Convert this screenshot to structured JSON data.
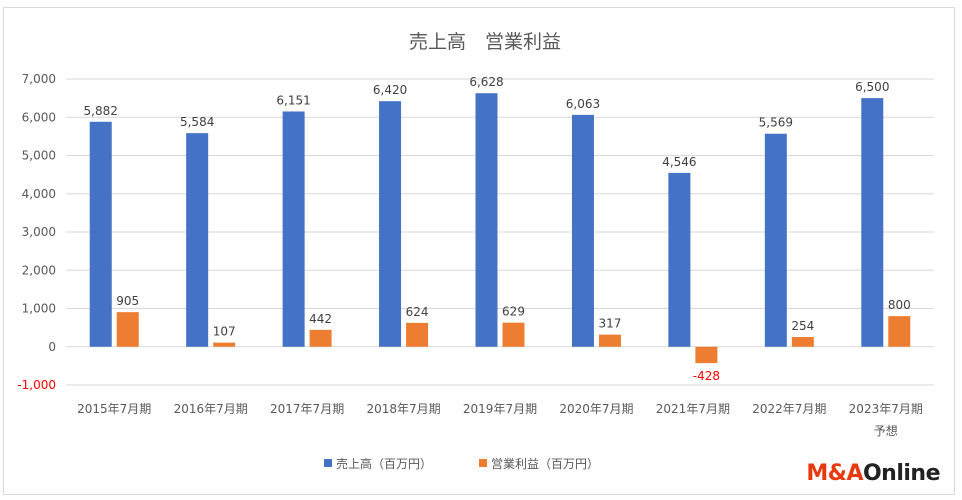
{
  "chart_data": {
    "type": "bar",
    "title": "売上高　営業利益",
    "categories": [
      [
        "2015年7月期"
      ],
      [
        "2016年7月期"
      ],
      [
        "2017年7月期"
      ],
      [
        "2018年7月期"
      ],
      [
        "2019年7月期"
      ],
      [
        "2020年7月期"
      ],
      [
        "2021年7月期"
      ],
      [
        "2022年7月期"
      ],
      [
        "2023年7月期",
        "予想"
      ]
    ],
    "series": [
      {
        "name": "売上高（百万円）",
        "color": "#4472c4",
        "values": [
          5882,
          5584,
          6151,
          6420,
          6628,
          6063,
          4546,
          5569,
          6500
        ],
        "labels": [
          "5,882",
          "5,584",
          "6,151",
          "6,420",
          "6,628",
          "6,063",
          "4,546",
          "5,569",
          "6,500"
        ]
      },
      {
        "name": "営業利益（百万円）",
        "color": "#ed7d31",
        "values": [
          905,
          107,
          442,
          624,
          629,
          317,
          -428,
          254,
          800
        ],
        "labels": [
          "905",
          "107",
          "442",
          "624",
          "629",
          "317",
          "-428",
          "254",
          "800"
        ]
      }
    ],
    "negative_label_color": "#ff0000",
    "ylim": [
      -1000,
      7000
    ],
    "yticks": [
      -1000,
      0,
      1000,
      2000,
      3000,
      4000,
      5000,
      6000,
      7000
    ],
    "ytick_labels": [
      "-1,000",
      "0",
      "1,000",
      "2,000",
      "3,000",
      "4,000",
      "5,000",
      "6,000",
      "7,000"
    ],
    "negative_tick_color": "#ff0000",
    "grid": true,
    "legend_position": "bottom"
  },
  "logo": {
    "part1": "M&A",
    "part2": "Online"
  }
}
